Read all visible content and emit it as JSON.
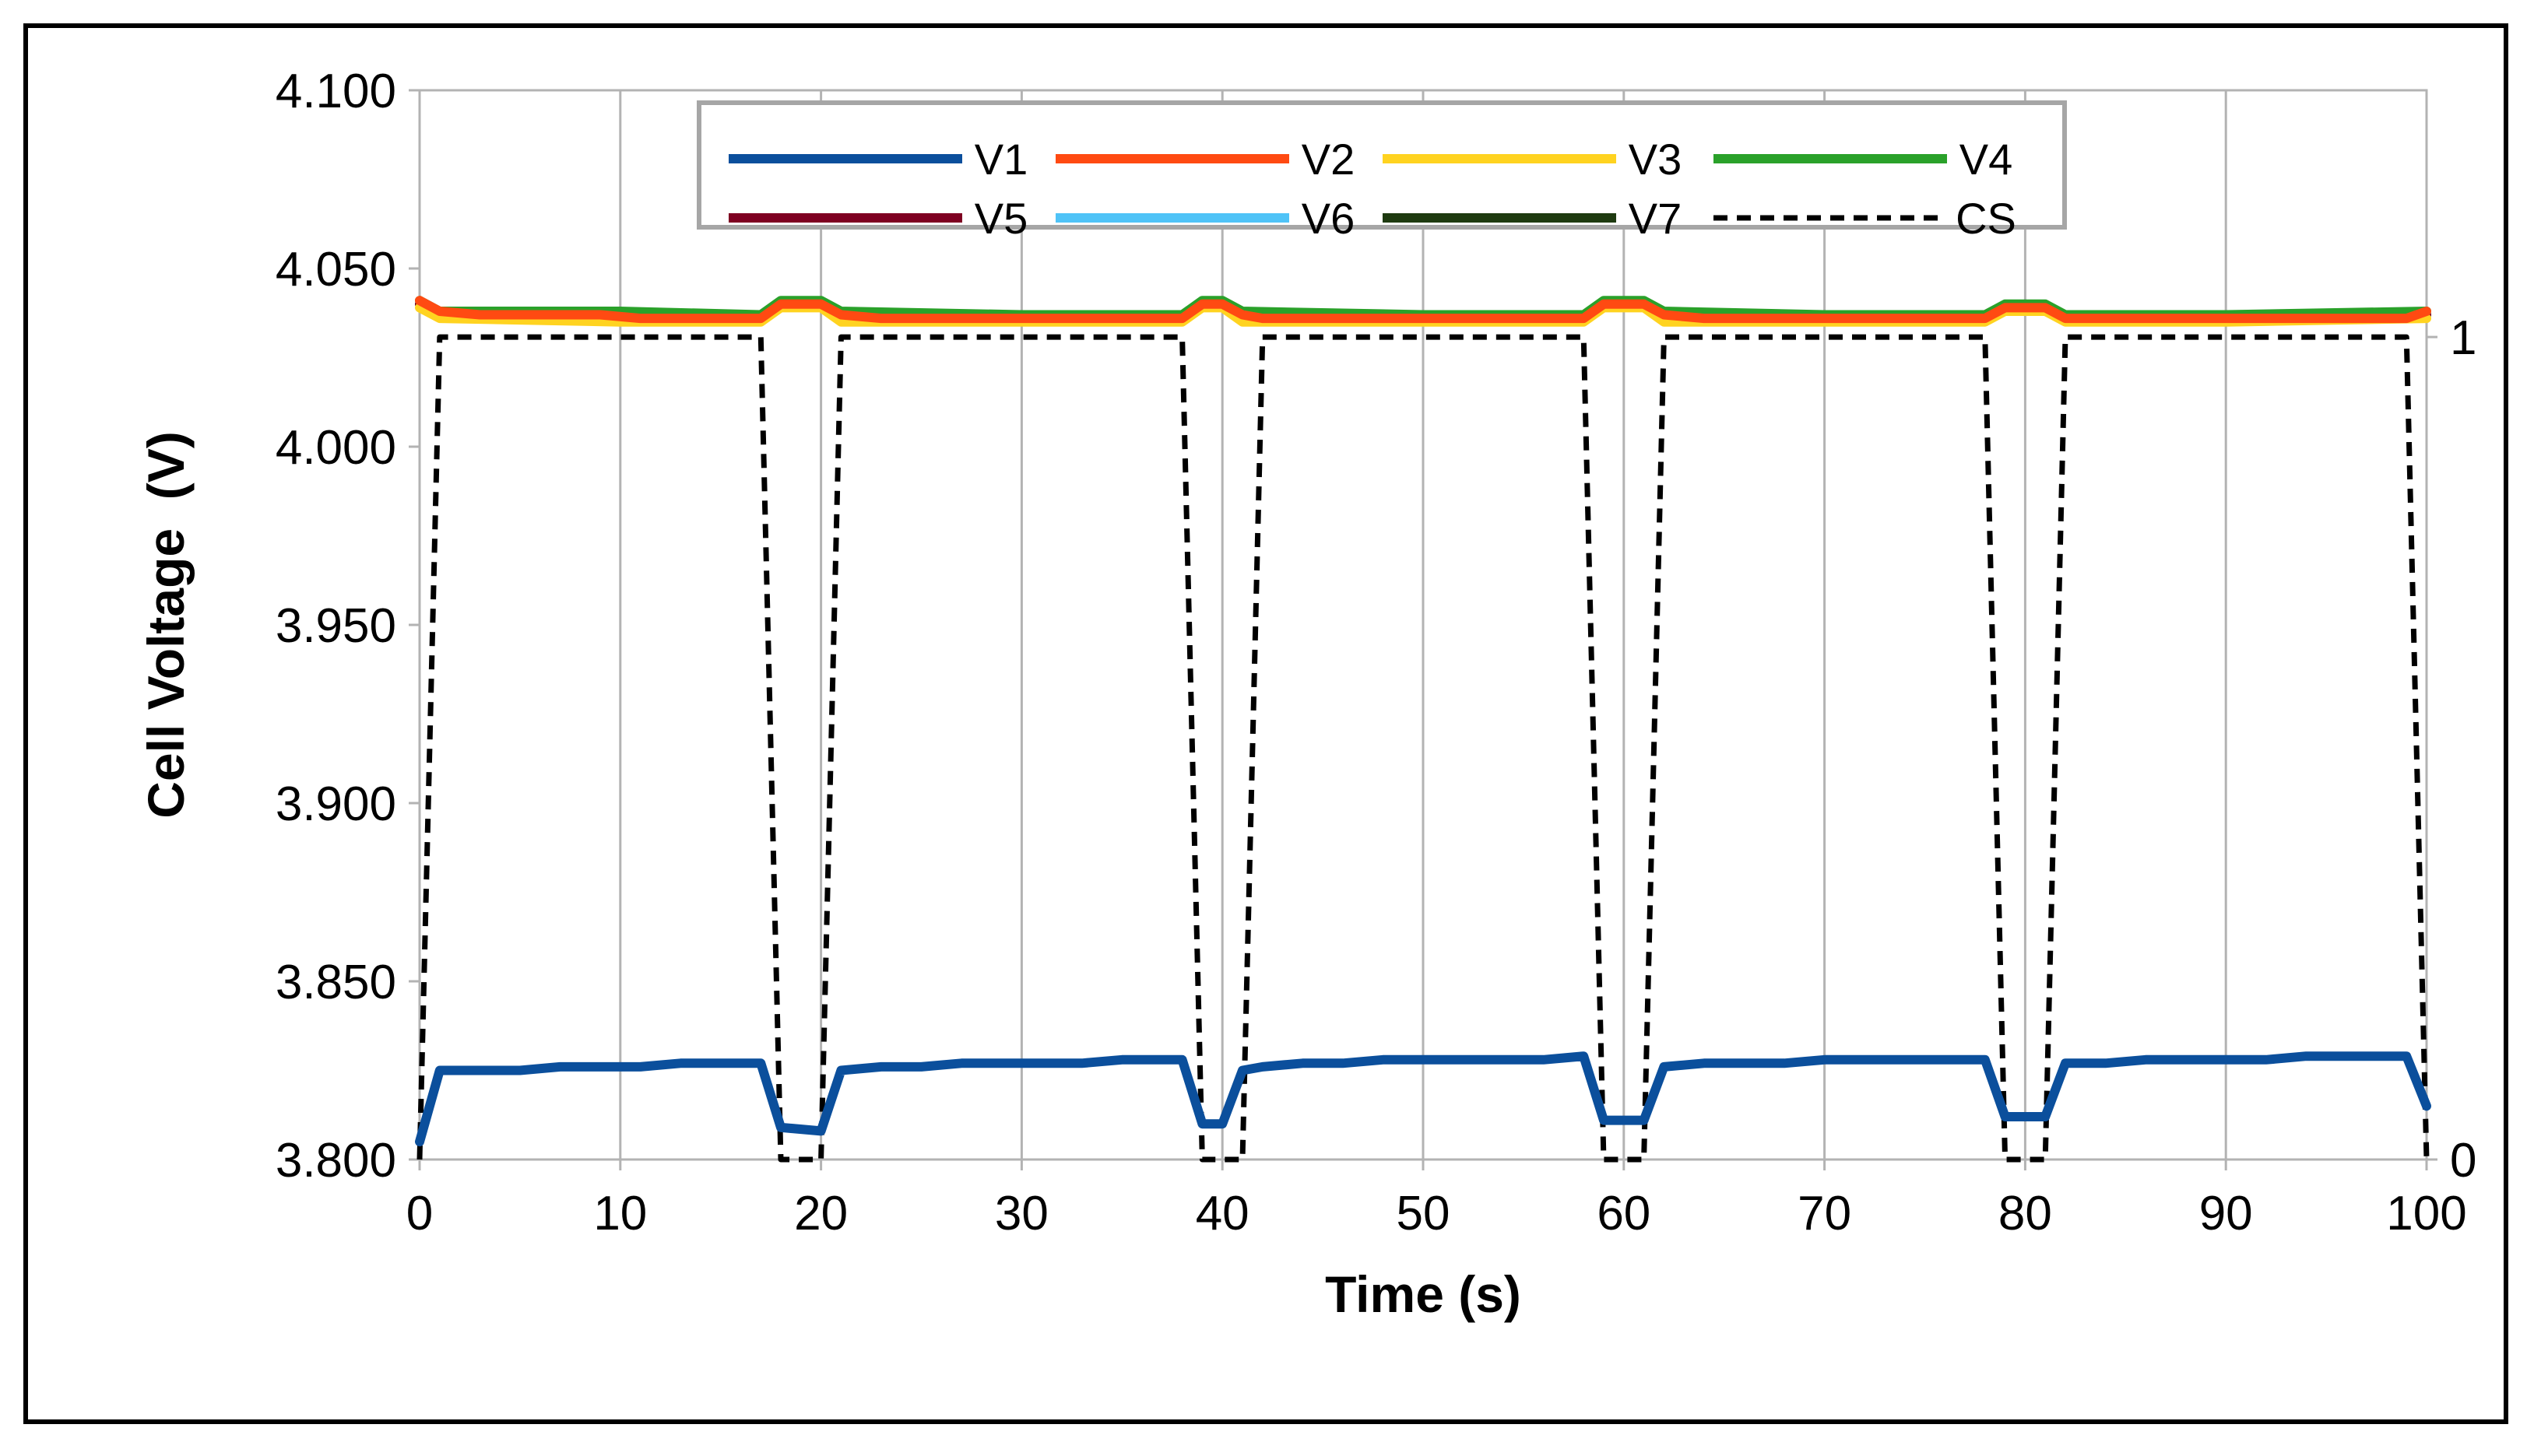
{
  "chart_data": {
    "type": "line",
    "title": "",
    "xlabel": "Time (s)",
    "ylabel": "Cell Voltage  (V)",
    "xlim": [
      0,
      100
    ],
    "ylim": [
      3.8,
      4.1
    ],
    "y2lim": [
      0,
      1.3
    ],
    "xticks": [
      "0",
      "10",
      "20",
      "30",
      "40",
      "50",
      "60",
      "70",
      "80",
      "90",
      "100"
    ],
    "yticks": [
      "3.800",
      "3.850",
      "3.900",
      "3.950",
      "4.000",
      "4.050",
      "4.100"
    ],
    "y2ticks": [
      "0",
      "1"
    ],
    "legend_position": "top-center",
    "grid": "vertical",
    "series": [
      {
        "name": "V1",
        "axis": "left",
        "color": "#0b4f9c",
        "x": [
          0,
          1,
          3,
          5,
          7,
          9,
          11,
          13,
          15,
          17,
          18,
          20,
          21,
          23,
          25,
          27,
          29,
          31,
          33,
          35,
          37,
          38,
          39,
          40,
          41,
          42,
          44,
          46,
          48,
          50,
          52,
          54,
          56,
          58,
          59,
          61,
          62,
          64,
          66,
          68,
          70,
          72,
          74,
          76,
          78,
          79,
          81,
          82,
          84,
          86,
          88,
          90,
          92,
          94,
          96,
          98,
          99,
          100
        ],
        "y": [
          3.805,
          3.825,
          3.825,
          3.825,
          3.826,
          3.826,
          3.826,
          3.827,
          3.827,
          3.827,
          3.809,
          3.808,
          3.825,
          3.826,
          3.826,
          3.827,
          3.827,
          3.827,
          3.827,
          3.828,
          3.828,
          3.828,
          3.81,
          3.81,
          3.825,
          3.826,
          3.827,
          3.827,
          3.828,
          3.828,
          3.828,
          3.828,
          3.828,
          3.829,
          3.811,
          3.811,
          3.826,
          3.827,
          3.827,
          3.827,
          3.828,
          3.828,
          3.828,
          3.828,
          3.828,
          3.812,
          3.812,
          3.827,
          3.827,
          3.828,
          3.828,
          3.828,
          3.828,
          3.829,
          3.829,
          3.829,
          3.829,
          3.815
        ]
      },
      {
        "name": "V2",
        "axis": "left",
        "color": "#ff4a12",
        "x": [
          0,
          1,
          3,
          5,
          7,
          9,
          11,
          13,
          15,
          17,
          18,
          20,
          21,
          23,
          25,
          27,
          29,
          31,
          33,
          35,
          37,
          38,
          39,
          40,
          41,
          42,
          44,
          46,
          48,
          50,
          52,
          54,
          56,
          58,
          59,
          61,
          62,
          64,
          66,
          68,
          70,
          72,
          74,
          76,
          78,
          79,
          81,
          82,
          84,
          86,
          88,
          90,
          92,
          94,
          96,
          98,
          99,
          100
        ],
        "y": [
          4.041,
          4.038,
          4.037,
          4.037,
          4.037,
          4.037,
          4.036,
          4.036,
          4.036,
          4.036,
          4.04,
          4.04,
          4.037,
          4.036,
          4.036,
          4.036,
          4.036,
          4.036,
          4.036,
          4.036,
          4.036,
          4.036,
          4.04,
          4.04,
          4.037,
          4.036,
          4.036,
          4.036,
          4.036,
          4.036,
          4.036,
          4.036,
          4.036,
          4.036,
          4.04,
          4.04,
          4.037,
          4.036,
          4.036,
          4.036,
          4.036,
          4.036,
          4.036,
          4.036,
          4.036,
          4.039,
          4.039,
          4.036,
          4.036,
          4.036,
          4.036,
          4.036,
          4.036,
          4.036,
          4.036,
          4.036,
          4.036,
          4.038
        ]
      },
      {
        "name": "V3",
        "axis": "left",
        "color": "#ffd320",
        "x": [
          0,
          1,
          10,
          17,
          18,
          20,
          21,
          30,
          38,
          39,
          40,
          41,
          50,
          58,
          59,
          61,
          62,
          70,
          78,
          79,
          81,
          82,
          90,
          100
        ],
        "y": [
          4.039,
          4.036,
          4.035,
          4.035,
          4.039,
          4.039,
          4.035,
          4.035,
          4.035,
          4.039,
          4.039,
          4.035,
          4.035,
          4.035,
          4.039,
          4.039,
          4.035,
          4.035,
          4.035,
          4.038,
          4.038,
          4.035,
          4.035,
          4.036
        ]
      },
      {
        "name": "V4",
        "axis": "left",
        "color": "#2aa12a",
        "x": [
          0,
          1,
          10,
          17,
          18,
          20,
          21,
          30,
          38,
          39,
          40,
          41,
          50,
          58,
          59,
          61,
          62,
          70,
          78,
          79,
          81,
          82,
          90,
          100
        ],
        "y": [
          4.041,
          4.038,
          4.038,
          4.037,
          4.041,
          4.041,
          4.038,
          4.037,
          4.037,
          4.041,
          4.041,
          4.038,
          4.037,
          4.037,
          4.041,
          4.041,
          4.038,
          4.037,
          4.037,
          4.04,
          4.04,
          4.037,
          4.037,
          4.038
        ]
      },
      {
        "name": "V5",
        "axis": "left",
        "color": "#7e0021",
        "x": [
          0,
          1,
          10,
          17,
          18,
          20,
          21,
          30,
          38,
          39,
          40,
          41,
          50,
          58,
          59,
          61,
          62,
          70,
          78,
          79,
          81,
          82,
          90,
          100
        ],
        "y": [
          4.04,
          4.037,
          4.037,
          4.036,
          4.04,
          4.04,
          4.037,
          4.036,
          4.036,
          4.04,
          4.04,
          4.037,
          4.036,
          4.036,
          4.04,
          4.04,
          4.037,
          4.036,
          4.036,
          4.039,
          4.039,
          4.036,
          4.036,
          4.037
        ]
      },
      {
        "name": "V6",
        "axis": "left",
        "color": "#4fc3f7",
        "x": [
          0,
          1,
          10,
          17,
          18,
          20,
          21,
          30,
          38,
          39,
          40,
          41,
          50,
          58,
          59,
          61,
          62,
          70,
          78,
          79,
          81,
          82,
          90,
          100
        ],
        "y": [
          4.04,
          4.037,
          4.037,
          4.036,
          4.04,
          4.04,
          4.037,
          4.036,
          4.036,
          4.04,
          4.04,
          4.037,
          4.036,
          4.036,
          4.04,
          4.04,
          4.037,
          4.036,
          4.036,
          4.039,
          4.039,
          4.036,
          4.036,
          4.037
        ]
      },
      {
        "name": "V7",
        "axis": "left",
        "color": "#1e3a10",
        "x": [
          0,
          1,
          10,
          17,
          18,
          20,
          21,
          30,
          38,
          39,
          40,
          41,
          50,
          58,
          59,
          61,
          62,
          70,
          78,
          79,
          81,
          82,
          90,
          100
        ],
        "y": [
          4.04,
          4.037,
          4.037,
          4.036,
          4.04,
          4.04,
          4.037,
          4.036,
          4.036,
          4.04,
          4.04,
          4.037,
          4.036,
          4.036,
          4.04,
          4.04,
          4.037,
          4.036,
          4.036,
          4.039,
          4.039,
          4.036,
          4.036,
          4.037
        ]
      },
      {
        "name": "CS",
        "axis": "right",
        "color": "#000000",
        "dashed": true,
        "x": [
          0,
          1,
          17,
          18,
          20,
          21,
          38,
          39,
          41,
          42,
          58,
          59,
          61,
          62,
          78,
          79,
          81,
          82,
          99,
          100
        ],
        "y": [
          0,
          1,
          1,
          0,
          0,
          1,
          1,
          0,
          0,
          1,
          1,
          0,
          0,
          1,
          1,
          0,
          0,
          1,
          1,
          0
        ]
      }
    ],
    "legend_order": [
      "V1",
      "V2",
      "V3",
      "V4",
      "V5",
      "V6",
      "V7",
      "CS"
    ]
  }
}
